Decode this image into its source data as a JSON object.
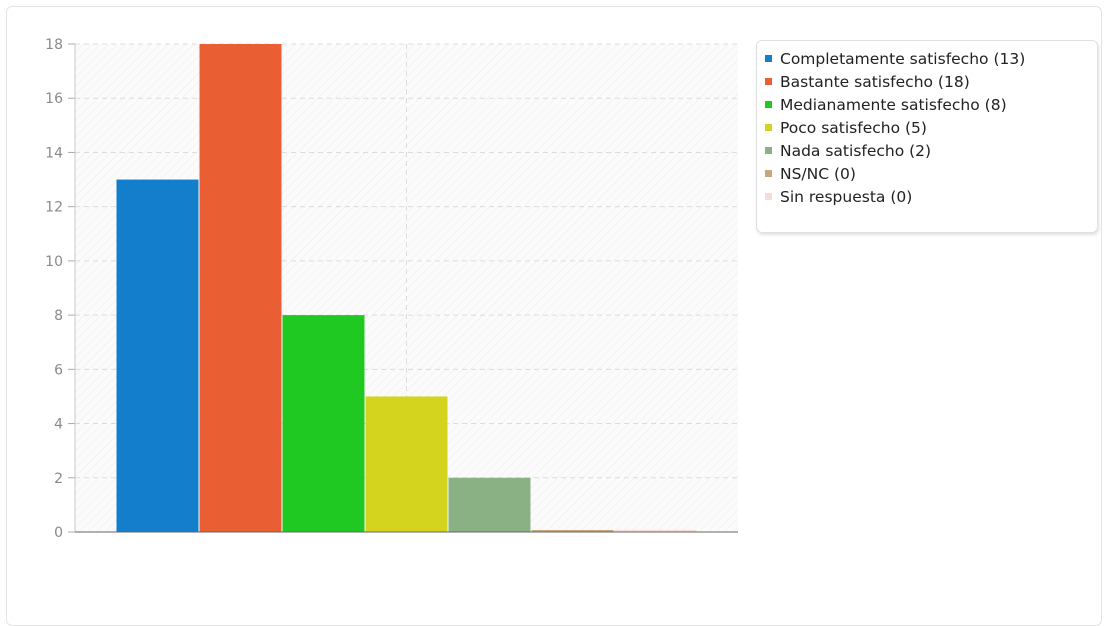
{
  "chart_data": {
    "type": "bar",
    "title": "",
    "xlabel": "",
    "ylabel": "",
    "ylim": [
      0,
      18
    ],
    "yticks": [
      0,
      2,
      4,
      6,
      8,
      10,
      12,
      14,
      16,
      18
    ],
    "grid": true,
    "legend_position": "right",
    "series": [
      {
        "name": "Completamente satisfecho (13)",
        "value": 13,
        "color": "#127ecc"
      },
      {
        "name": "Bastante satisfecho (18)",
        "value": 18,
        "color": "#e95f33"
      },
      {
        "name": "Medianamente satisfecho (8)",
        "value": 8,
        "color": "#20c922"
      },
      {
        "name": "Poco satisfecho (5)",
        "value": 5,
        "color": "#d4d41e"
      },
      {
        "name": "Nada satisfecho (2)",
        "value": 2,
        "color": "#89b184"
      },
      {
        "name": "NS/NC (0)",
        "value": 0,
        "color": "#c9a67e"
      },
      {
        "name": "Sin respuesta (0)",
        "value": 0,
        "color": "#f6dcd6"
      }
    ]
  }
}
